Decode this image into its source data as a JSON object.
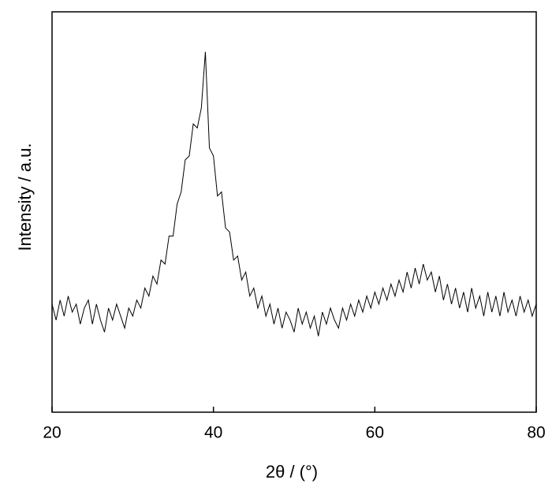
{
  "chart_data": {
    "type": "line",
    "ylabel": "Intensity / a.u.",
    "xlabel": "2θ / (°)",
    "xlim": [
      20,
      80
    ],
    "xticks": [
      20,
      40,
      60,
      80
    ],
    "ylim": [
      0,
      100
    ],
    "color": "#000000",
    "x": [
      20,
      20.5,
      21,
      21.5,
      22,
      22.5,
      23,
      23.5,
      24,
      24.5,
      25,
      25.5,
      26,
      26.5,
      27,
      27.5,
      28,
      28.5,
      29,
      29.5,
      30,
      30.5,
      31,
      31.5,
      32,
      32.5,
      33,
      33.5,
      34,
      34.5,
      35,
      35.5,
      36,
      36.5,
      37,
      37.5,
      38,
      38.5,
      39,
      39.5,
      40,
      40.5,
      41,
      41.5,
      42,
      42.5,
      43,
      43.5,
      44,
      44.5,
      45,
      45.5,
      46,
      46.5,
      47,
      47.5,
      48,
      48.5,
      49,
      49.5,
      50,
      50.5,
      51,
      51.5,
      52,
      52.5,
      53,
      53.5,
      54,
      54.5,
      55,
      55.5,
      56,
      56.5,
      57,
      57.5,
      58,
      58.5,
      59,
      59.5,
      60,
      60.5,
      61,
      61.5,
      62,
      62.5,
      63,
      63.5,
      64,
      64.5,
      65,
      65.5,
      66,
      66.5,
      67,
      67.5,
      68,
      68.5,
      69,
      69.5,
      70,
      70.5,
      71,
      71.5,
      72,
      72.5,
      73,
      73.5,
      74,
      74.5,
      75,
      75.5,
      76,
      76.5,
      77,
      77.5,
      78,
      78.5,
      79,
      79.5,
      80
    ],
    "values": [
      27,
      23,
      28,
      24,
      29,
      25,
      27,
      22,
      26,
      28,
      22,
      27,
      23,
      20,
      26,
      23,
      27,
      24,
      21,
      26,
      24,
      28,
      26,
      31,
      29,
      34,
      32,
      38,
      37,
      44,
      44,
      52,
      55,
      63,
      64,
      72,
      71,
      76,
      90,
      66,
      64,
      54,
      55,
      46,
      45,
      38,
      39,
      33,
      35,
      29,
      31,
      26,
      29,
      24,
      27,
      22,
      26,
      21,
      25,
      23,
      20,
      26,
      22,
      25,
      21,
      24,
      19,
      25,
      22,
      26,
      23,
      21,
      26,
      23,
      27,
      24,
      28,
      25,
      29,
      26,
      30,
      27,
      31,
      28,
      32,
      29,
      33,
      30,
      35,
      31,
      36,
      32,
      37,
      33,
      35,
      30,
      34,
      28,
      32,
      27,
      31,
      26,
      30,
      25,
      31,
      26,
      29,
      24,
      30,
      25,
      29,
      24,
      30,
      25,
      28,
      24,
      29,
      25,
      28,
      24,
      27
    ]
  }
}
